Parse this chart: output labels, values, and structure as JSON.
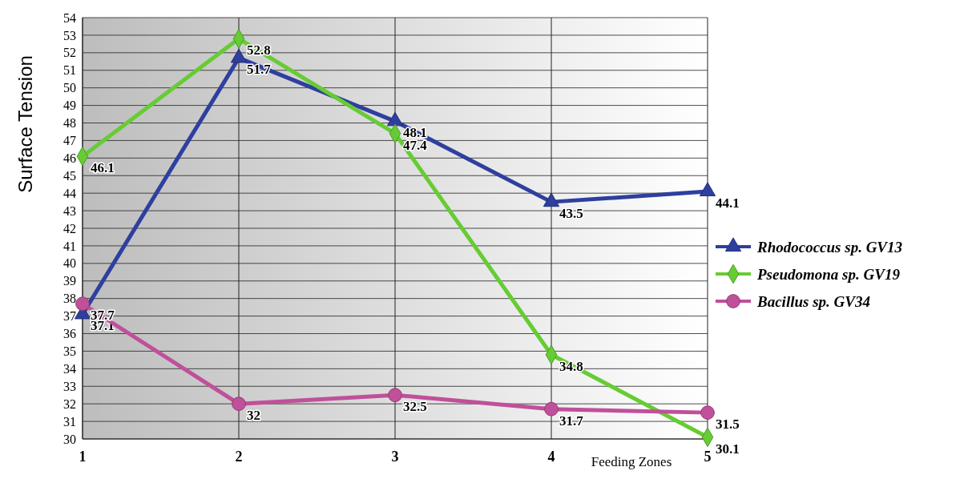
{
  "chart_data": {
    "type": "line",
    "xlabel": "Feeding Zones",
    "ylabel": "Surface Tension",
    "x": [
      1,
      2,
      3,
      4,
      5
    ],
    "xlim": [
      1,
      5
    ],
    "xticks": [
      1,
      2,
      3,
      4,
      5
    ],
    "ylim": [
      30,
      54
    ],
    "yticks": [
      30,
      31,
      32,
      33,
      34,
      35,
      36,
      37,
      38,
      39,
      40,
      41,
      42,
      43,
      44,
      45,
      46,
      47,
      48,
      49,
      50,
      51,
      52,
      53,
      54
    ],
    "grid": true,
    "legend": "right",
    "data_labels": true,
    "series": [
      {
        "name": "Rhodococcus sp. GV13",
        "color": "#2e3f9e",
        "marker": "triangle",
        "values": [
          37.1,
          51.7,
          48.1,
          43.5,
          44.1
        ]
      },
      {
        "name": "Pseudomona sp. GV19",
        "color": "#66cc33",
        "marker": "diamond",
        "values": [
          46.1,
          52.8,
          47.4,
          34.8,
          30.1
        ]
      },
      {
        "name": "Bacillus sp. GV34",
        "color": "#c0509a",
        "marker": "circle",
        "values": [
          37.7,
          32,
          32.5,
          31.7,
          31.5
        ]
      }
    ]
  }
}
